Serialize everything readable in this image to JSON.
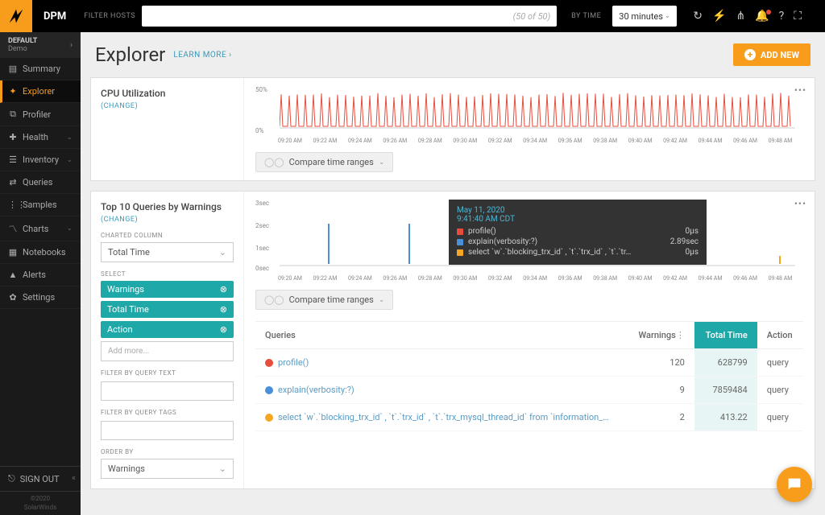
{
  "brand": "DPM",
  "topbar": {
    "filter_label": "FILTER HOSTS",
    "host_placeholder": "(50 of 50)",
    "by_time_label": "BY TIME",
    "time_value": "30 minutes"
  },
  "org": {
    "label": "DEFAULT",
    "sub": "Demo"
  },
  "nav": [
    {
      "icon": "▤",
      "label": "Summary"
    },
    {
      "icon": "✦",
      "label": "Explorer",
      "active": true
    },
    {
      "icon": "⧉",
      "label": "Profiler"
    },
    {
      "icon": "✚",
      "label": "Health",
      "chev": true
    },
    {
      "icon": "☰",
      "label": "Inventory",
      "chev": true
    },
    {
      "icon": "⇄",
      "label": "Queries"
    },
    {
      "icon": "⋮⋮",
      "label": "Samples"
    },
    {
      "icon": "〽",
      "label": "Charts",
      "chev": true
    },
    {
      "icon": "▦",
      "label": "Notebooks"
    },
    {
      "icon": "▲",
      "label": "Alerts"
    },
    {
      "icon": "✿",
      "label": "Settings"
    }
  ],
  "signout": "SIGN OUT",
  "copyright1": "©2020",
  "copyright2": "SolarWinds",
  "page": {
    "title": "Explorer",
    "learn_more": "LEARN MORE ›",
    "add_new": "ADD NEW"
  },
  "cpu_panel": {
    "title": "CPU Utilization",
    "change": "(CHANGE)",
    "compare": "Compare time ranges",
    "y_top": "50%",
    "y_bot": "0%",
    "chart": {
      "color": "#e74c3c",
      "xticks": [
        "09:20 AM",
        "09:22 AM",
        "09:24 AM",
        "09:26 AM",
        "09:28 AM",
        "09:30 AM",
        "09:32 AM",
        "09:34 AM",
        "09:36 AM",
        "09:38 AM",
        "09:40 AM",
        "09:42 AM",
        "09:44 AM",
        "09:46 AM",
        "09:48 AM"
      ]
    }
  },
  "queries_panel": {
    "title": "Top 10 Queries by Warnings",
    "change": "(CHANGE)",
    "charted_col_label": "CHARTED COLUMN",
    "charted_col_value": "Total Time",
    "select_label": "SELECT",
    "tags": [
      "Warnings",
      "Total Time",
      "Action"
    ],
    "add_more": "Add more...",
    "filter_text_label": "FILTER BY QUERY TEXT",
    "filter_tags_label": "FILTER BY QUERY TAGS",
    "order_by_label": "ORDER BY",
    "order_by_value": "Warnings",
    "y_top": "3sec",
    "y_mid": "2sec",
    "y_mid2": "1sec",
    "y_bot": "0sec",
    "xticks": [
      "09:20 AM",
      "09:22 AM",
      "09:24 AM",
      "09:26 AM",
      "09:28 AM",
      "09:30 AM",
      "09:32 AM",
      "09:34 AM",
      "09:36 AM",
      "09:38 AM",
      "09:40 AM",
      "09:42 AM",
      "09:44 AM",
      "09:46 AM",
      "09:48 AM"
    ],
    "tooltip": {
      "head1": "May 11, 2020",
      "head2": "9:41:40 AM CDT",
      "rows": [
        {
          "color": "#e74c3c",
          "label": "profile()",
          "val": "0μs"
        },
        {
          "color": "#4a90d9",
          "label": "explain(verbosity:?)",
          "val": "2.89sec"
        },
        {
          "color": "#f5a623",
          "label": "select `w`.`blocking_trx_id` , `t`.`trx_id` , `t`.`tr…",
          "val": "0μs"
        }
      ]
    },
    "compare": "Compare time ranges",
    "table": {
      "cols": [
        "Queries",
        "Warnings",
        "Total Time",
        "Action"
      ],
      "rows": [
        {
          "color": "#e74c3c",
          "q": "profile()",
          "warn": "120",
          "tt": "628799",
          "act": "query"
        },
        {
          "color": "#4a90d9",
          "q": "explain(verbosity:?)",
          "warn": "9",
          "tt": "7859484",
          "act": "query"
        },
        {
          "color": "#f5a623",
          "q": "select `w`.`blocking_trx_id` , `t`.`trx_id` , `t`.`trx_mysql_thread_id` from `information_…",
          "warn": "2",
          "tt": "413.22",
          "act": "query"
        }
      ]
    }
  }
}
